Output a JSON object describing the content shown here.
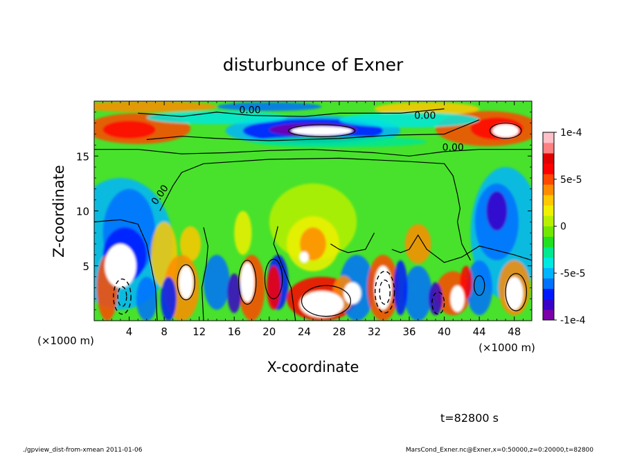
{
  "chart_data": {
    "type": "heatmap",
    "title": "disturbunce of Exner",
    "xlabel": "X-coordinate",
    "ylabel": "Z-coordinate",
    "x_unit": "(×1000 m)",
    "y_unit": "(×1000 m)",
    "xlim": [
      0,
      50
    ],
    "ylim": [
      0,
      20
    ],
    "x_ticks": [
      4,
      8,
      12,
      16,
      20,
      24,
      28,
      32,
      36,
      40,
      44,
      48
    ],
    "y_ticks": [
      5,
      10,
      15
    ],
    "colorbar": {
      "min": -0.0001,
      "max": 0.0001,
      "ticks": [
        {
          "value": 0.0001,
          "label": "1e-4"
        },
        {
          "value": 5e-05,
          "label": "5e-5"
        },
        {
          "value": 0,
          "label": "0"
        },
        {
          "value": -5e-05,
          "label": "-5e-5"
        },
        {
          "value": -0.0001,
          "label": "-1e-4"
        }
      ],
      "colors": [
        "#7a00a8",
        "#3a00c8",
        "#0018ff",
        "#0070ff",
        "#00b4ff",
        "#00e8e0",
        "#00e890",
        "#20e020",
        "#70e800",
        "#b8f000",
        "#f0f000",
        "#ffc800",
        "#ff8c00",
        "#ff4800",
        "#ff0000",
        "#e00000",
        "#ff8080",
        "#ffc0c8"
      ]
    },
    "contour_label": "0.00",
    "annotation": "t=82800 s",
    "grid": false,
    "legend": "colorbar-right"
  },
  "footer": {
    "left": "./gpview_dist-from-xmean  2011-01-06",
    "right": "MarsCond_Exner.nc@Exner,x=0:50000,z=0:20000,t=82800"
  },
  "colors": {
    "neutral": "#48e22c",
    "contour": "#000000",
    "saturated_high": "#ffffff"
  }
}
